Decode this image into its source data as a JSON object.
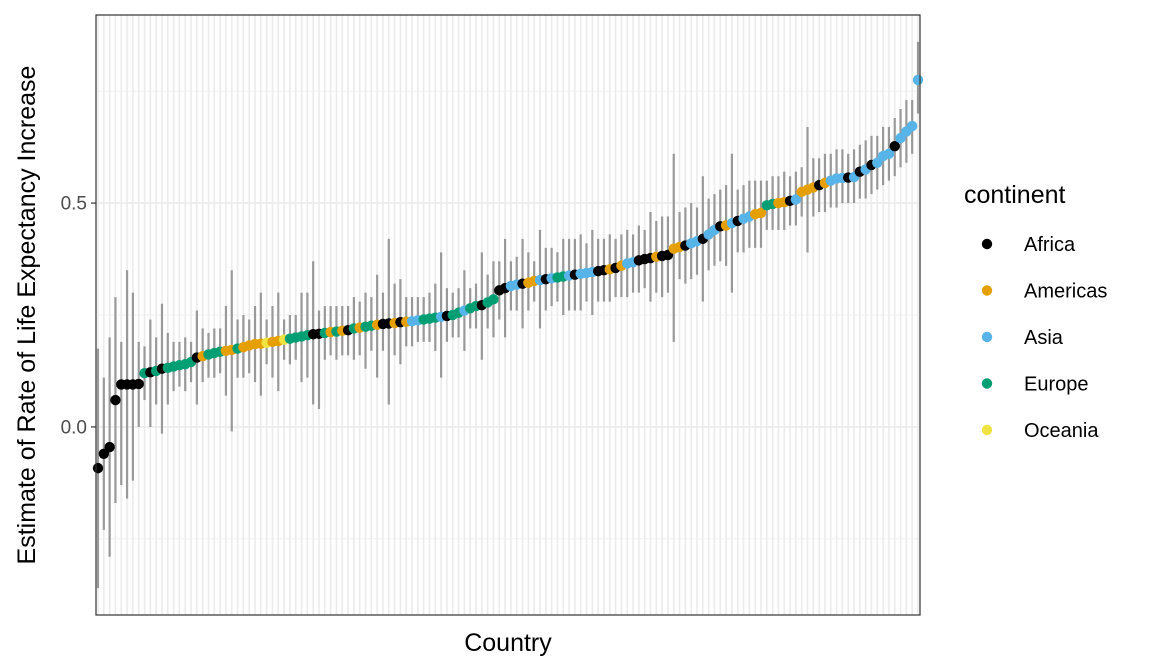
{
  "chart_data": {
    "type": "scatter",
    "xlabel": "Country",
    "ylabel": "Estimate of Rate of Life Expectancy Increase",
    "ylim": [
      -0.42,
      0.92
    ],
    "yticks": [
      0.0,
      0.5
    ],
    "ytick_labels": [
      "0.0",
      "0.5"
    ],
    "x_tick_labels_shown": false,
    "grid": true,
    "legend": {
      "title": "continent",
      "placement": "right",
      "entries": [
        {
          "name": "Africa",
          "color": "#000000"
        },
        {
          "name": "Americas",
          "color": "#E69F00"
        },
        {
          "name": "Asia",
          "color": "#56B4E9"
        },
        {
          "name": "Europe",
          "color": "#009E73"
        },
        {
          "name": "Oceania",
          "color": "#F0E442"
        }
      ]
    },
    "series_note": "142 countries ordered by estimate",
    "points": [
      {
        "rank": 1,
        "continent": "Africa",
        "y": -0.092,
        "lo": -0.36,
        "hi": 0.175
      },
      {
        "rank": 2,
        "continent": "Africa",
        "y": -0.06,
        "lo": -0.23,
        "hi": 0.11
      },
      {
        "rank": 3,
        "continent": "Africa",
        "y": -0.045,
        "lo": -0.29,
        "hi": 0.2
      },
      {
        "rank": 4,
        "continent": "Africa",
        "y": 0.06,
        "lo": -0.17,
        "hi": 0.29
      },
      {
        "rank": 5,
        "continent": "Africa",
        "y": 0.095,
        "lo": -0.13,
        "hi": 0.19
      },
      {
        "rank": 6,
        "continent": "Africa",
        "y": 0.095,
        "lo": -0.16,
        "hi": 0.35
      },
      {
        "rank": 7,
        "continent": "Africa",
        "y": 0.095,
        "lo": -0.12,
        "hi": 0.3
      },
      {
        "rank": 8,
        "continent": "Africa",
        "y": 0.096,
        "lo": 0.0,
        "hi": 0.19
      },
      {
        "rank": 9,
        "continent": "Europe",
        "y": 0.12,
        "lo": 0.06,
        "hi": 0.18
      },
      {
        "rank": 10,
        "continent": "Africa",
        "y": 0.122,
        "lo": 0.0,
        "hi": 0.24
      },
      {
        "rank": 11,
        "continent": "Europe",
        "y": 0.125,
        "lo": 0.05,
        "hi": 0.2
      },
      {
        "rank": 12,
        "continent": "Africa",
        "y": 0.13,
        "lo": -0.015,
        "hi": 0.275
      },
      {
        "rank": 13,
        "continent": "Europe",
        "y": 0.132,
        "lo": 0.05,
        "hi": 0.21
      },
      {
        "rank": 14,
        "continent": "Europe",
        "y": 0.135,
        "lo": 0.08,
        "hi": 0.19
      },
      {
        "rank": 15,
        "continent": "Europe",
        "y": 0.138,
        "lo": 0.09,
        "hi": 0.19
      },
      {
        "rank": 16,
        "continent": "Europe",
        "y": 0.14,
        "lo": 0.08,
        "hi": 0.2
      },
      {
        "rank": 17,
        "continent": "Europe",
        "y": 0.145,
        "lo": 0.1,
        "hi": 0.19
      },
      {
        "rank": 18,
        "continent": "Africa",
        "y": 0.155,
        "lo": 0.05,
        "hi": 0.26
      },
      {
        "rank": 19,
        "continent": "Americas",
        "y": 0.158,
        "lo": 0.1,
        "hi": 0.22
      },
      {
        "rank": 20,
        "continent": "Europe",
        "y": 0.162,
        "lo": 0.11,
        "hi": 0.21
      },
      {
        "rank": 21,
        "continent": "Europe",
        "y": 0.165,
        "lo": 0.11,
        "hi": 0.22
      },
      {
        "rank": 22,
        "continent": "Europe",
        "y": 0.168,
        "lo": 0.12,
        "hi": 0.22
      },
      {
        "rank": 23,
        "continent": "Americas",
        "y": 0.17,
        "lo": 0.07,
        "hi": 0.27
      },
      {
        "rank": 24,
        "continent": "Americas",
        "y": 0.172,
        "lo": -0.01,
        "hi": 0.35
      },
      {
        "rank": 25,
        "continent": "Europe",
        "y": 0.175,
        "lo": 0.11,
        "hi": 0.24
      },
      {
        "rank": 26,
        "continent": "Americas",
        "y": 0.178,
        "lo": 0.11,
        "hi": 0.25
      },
      {
        "rank": 27,
        "continent": "Americas",
        "y": 0.182,
        "lo": 0.12,
        "hi": 0.24
      },
      {
        "rank": 28,
        "continent": "Americas",
        "y": 0.185,
        "lo": 0.1,
        "hi": 0.27
      },
      {
        "rank": 29,
        "continent": "Americas",
        "y": 0.186,
        "lo": 0.07,
        "hi": 0.3
      },
      {
        "rank": 30,
        "continent": "Oceania",
        "y": 0.188,
        "lo": 0.14,
        "hi": 0.24
      },
      {
        "rank": 31,
        "continent": "Americas",
        "y": 0.19,
        "lo": 0.11,
        "hi": 0.27
      },
      {
        "rank": 32,
        "continent": "Americas",
        "y": 0.192,
        "lo": 0.08,
        "hi": 0.3
      },
      {
        "rank": 33,
        "continent": "Oceania",
        "y": 0.195,
        "lo": 0.15,
        "hi": 0.24
      },
      {
        "rank": 34,
        "continent": "Europe",
        "y": 0.197,
        "lo": 0.14,
        "hi": 0.25
      },
      {
        "rank": 35,
        "continent": "Europe",
        "y": 0.2,
        "lo": 0.15,
        "hi": 0.25
      },
      {
        "rank": 36,
        "continent": "Europe",
        "y": 0.202,
        "lo": 0.1,
        "hi": 0.3
      },
      {
        "rank": 37,
        "continent": "Europe",
        "y": 0.205,
        "lo": 0.11,
        "hi": 0.3
      },
      {
        "rank": 38,
        "continent": "Africa",
        "y": 0.207,
        "lo": 0.05,
        "hi": 0.37
      },
      {
        "rank": 39,
        "continent": "Africa",
        "y": 0.208,
        "lo": 0.04,
        "hi": 0.26
      },
      {
        "rank": 40,
        "continent": "Europe",
        "y": 0.21,
        "lo": 0.15,
        "hi": 0.27
      },
      {
        "rank": 41,
        "continent": "Americas",
        "y": 0.212,
        "lo": 0.16,
        "hi": 0.27
      },
      {
        "rank": 42,
        "continent": "Europe",
        "y": 0.213,
        "lo": 0.15,
        "hi": 0.27
      },
      {
        "rank": 43,
        "continent": "Americas",
        "y": 0.215,
        "lo": 0.16,
        "hi": 0.27
      },
      {
        "rank": 44,
        "continent": "Africa",
        "y": 0.216,
        "lo": 0.16,
        "hi": 0.27
      },
      {
        "rank": 45,
        "continent": "Europe",
        "y": 0.22,
        "lo": 0.15,
        "hi": 0.29
      },
      {
        "rank": 46,
        "continent": "Americas",
        "y": 0.222,
        "lo": 0.16,
        "hi": 0.28
      },
      {
        "rank": 47,
        "continent": "Europe",
        "y": 0.224,
        "lo": 0.13,
        "hi": 0.3
      },
      {
        "rank": 48,
        "continent": "Europe",
        "y": 0.226,
        "lo": 0.17,
        "hi": 0.29
      },
      {
        "rank": 49,
        "continent": "Americas",
        "y": 0.228,
        "lo": 0.11,
        "hi": 0.34
      },
      {
        "rank": 50,
        "continent": "Africa",
        "y": 0.23,
        "lo": 0.17,
        "hi": 0.3
      },
      {
        "rank": 51,
        "continent": "Africa",
        "y": 0.231,
        "lo": 0.05,
        "hi": 0.42
      },
      {
        "rank": 52,
        "continent": "Americas",
        "y": 0.232,
        "lo": 0.16,
        "hi": 0.32
      },
      {
        "rank": 53,
        "continent": "Africa",
        "y": 0.234,
        "lo": 0.14,
        "hi": 0.33
      },
      {
        "rank": 54,
        "continent": "Americas",
        "y": 0.235,
        "lo": 0.18,
        "hi": 0.29
      },
      {
        "rank": 55,
        "continent": "Asia",
        "y": 0.236,
        "lo": 0.18,
        "hi": 0.29
      },
      {
        "rank": 56,
        "continent": "Asia",
        "y": 0.238,
        "lo": 0.19,
        "hi": 0.29
      },
      {
        "rank": 57,
        "continent": "Europe",
        "y": 0.24,
        "lo": 0.19,
        "hi": 0.29
      },
      {
        "rank": 58,
        "continent": "Europe",
        "y": 0.242,
        "lo": 0.19,
        "hi": 0.3
      },
      {
        "rank": 59,
        "continent": "Europe",
        "y": 0.244,
        "lo": 0.17,
        "hi": 0.32
      },
      {
        "rank": 60,
        "continent": "Asia",
        "y": 0.246,
        "lo": 0.11,
        "hi": 0.39
      },
      {
        "rank": 61,
        "continent": "Africa",
        "y": 0.248,
        "lo": 0.19,
        "hi": 0.31
      },
      {
        "rank": 62,
        "continent": "Europe",
        "y": 0.25,
        "lo": 0.2,
        "hi": 0.3
      },
      {
        "rank": 63,
        "continent": "Europe",
        "y": 0.255,
        "lo": 0.2,
        "hi": 0.31
      },
      {
        "rank": 64,
        "continent": "Asia",
        "y": 0.26,
        "lo": 0.17,
        "hi": 0.35
      },
      {
        "rank": 65,
        "continent": "Europe",
        "y": 0.265,
        "lo": 0.22,
        "hi": 0.31
      },
      {
        "rank": 66,
        "continent": "Europe",
        "y": 0.27,
        "lo": 0.22,
        "hi": 0.32
      },
      {
        "rank": 67,
        "continent": "Africa",
        "y": 0.272,
        "lo": 0.15,
        "hi": 0.39
      },
      {
        "rank": 68,
        "continent": "Europe",
        "y": 0.278,
        "lo": 0.22,
        "hi": 0.34
      },
      {
        "rank": 69,
        "continent": "Europe",
        "y": 0.285,
        "lo": 0.2,
        "hi": 0.37
      },
      {
        "rank": 70,
        "continent": "Africa",
        "y": 0.305,
        "lo": 0.24,
        "hi": 0.37
      },
      {
        "rank": 71,
        "continent": "Africa",
        "y": 0.31,
        "lo": 0.2,
        "hi": 0.42
      },
      {
        "rank": 72,
        "continent": "Asia",
        "y": 0.315,
        "lo": 0.26,
        "hi": 0.37
      },
      {
        "rank": 73,
        "continent": "Asia",
        "y": 0.318,
        "lo": 0.26,
        "hi": 0.38
      },
      {
        "rank": 74,
        "continent": "Africa",
        "y": 0.32,
        "lo": 0.22,
        "hi": 0.42
      },
      {
        "rank": 75,
        "continent": "Americas",
        "y": 0.322,
        "lo": 0.26,
        "hi": 0.39
      },
      {
        "rank": 76,
        "continent": "Americas",
        "y": 0.326,
        "lo": 0.28,
        "hi": 0.37
      },
      {
        "rank": 77,
        "continent": "Asia",
        "y": 0.328,
        "lo": 0.22,
        "hi": 0.44
      },
      {
        "rank": 78,
        "continent": "Africa",
        "y": 0.33,
        "lo": 0.26,
        "hi": 0.4
      },
      {
        "rank": 79,
        "continent": "Asia",
        "y": 0.332,
        "lo": 0.27,
        "hi": 0.4
      },
      {
        "rank": 80,
        "continent": "Europe",
        "y": 0.334,
        "lo": 0.28,
        "hi": 0.39
      },
      {
        "rank": 81,
        "continent": "Europe",
        "y": 0.336,
        "lo": 0.25,
        "hi": 0.42
      },
      {
        "rank": 82,
        "continent": "Asia",
        "y": 0.338,
        "lo": 0.26,
        "hi": 0.42
      },
      {
        "rank": 83,
        "continent": "Africa",
        "y": 0.34,
        "lo": 0.26,
        "hi": 0.42
      },
      {
        "rank": 84,
        "continent": "Asia",
        "y": 0.342,
        "lo": 0.26,
        "hi": 0.43
      },
      {
        "rank": 85,
        "continent": "Asia",
        "y": 0.344,
        "lo": 0.28,
        "hi": 0.41
      },
      {
        "rank": 86,
        "continent": "Asia",
        "y": 0.346,
        "lo": 0.25,
        "hi": 0.44
      },
      {
        "rank": 87,
        "continent": "Africa",
        "y": 0.348,
        "lo": 0.28,
        "hi": 0.42
      },
      {
        "rank": 88,
        "continent": "Africa",
        "y": 0.35,
        "lo": 0.28,
        "hi": 0.42
      },
      {
        "rank": 89,
        "continent": "Americas",
        "y": 0.352,
        "lo": 0.28,
        "hi": 0.43
      },
      {
        "rank": 90,
        "continent": "Africa",
        "y": 0.355,
        "lo": 0.29,
        "hi": 0.42
      },
      {
        "rank": 91,
        "continent": "Americas",
        "y": 0.36,
        "lo": 0.29,
        "hi": 0.43
      },
      {
        "rank": 92,
        "continent": "Asia",
        "y": 0.365,
        "lo": 0.29,
        "hi": 0.44
      },
      {
        "rank": 93,
        "continent": "Asia",
        "y": 0.368,
        "lo": 0.3,
        "hi": 0.43
      },
      {
        "rank": 94,
        "continent": "Africa",
        "y": 0.372,
        "lo": 0.3,
        "hi": 0.45
      },
      {
        "rank": 95,
        "continent": "Africa",
        "y": 0.375,
        "lo": 0.31,
        "hi": 0.44
      },
      {
        "rank": 96,
        "continent": "Africa",
        "y": 0.377,
        "lo": 0.28,
        "hi": 0.48
      },
      {
        "rank": 97,
        "continent": "Americas",
        "y": 0.38,
        "lo": 0.3,
        "hi": 0.46
      },
      {
        "rank": 98,
        "continent": "Africa",
        "y": 0.382,
        "lo": 0.29,
        "hi": 0.47
      },
      {
        "rank": 99,
        "continent": "Africa",
        "y": 0.384,
        "lo": 0.3,
        "hi": 0.47
      },
      {
        "rank": 100,
        "continent": "Americas",
        "y": 0.398,
        "lo": 0.19,
        "hi": 0.61
      },
      {
        "rank": 101,
        "continent": "Americas",
        "y": 0.402,
        "lo": 0.33,
        "hi": 0.48
      },
      {
        "rank": 102,
        "continent": "Africa",
        "y": 0.405,
        "lo": 0.32,
        "hi": 0.49
      },
      {
        "rank": 103,
        "continent": "Asia",
        "y": 0.41,
        "lo": 0.33,
        "hi": 0.5
      },
      {
        "rank": 104,
        "continent": "Asia",
        "y": 0.415,
        "lo": 0.34,
        "hi": 0.49
      },
      {
        "rank": 105,
        "continent": "Africa",
        "y": 0.42,
        "lo": 0.28,
        "hi": 0.56
      },
      {
        "rank": 106,
        "continent": "Asia",
        "y": 0.43,
        "lo": 0.35,
        "hi": 0.51
      },
      {
        "rank": 107,
        "continent": "Asia",
        "y": 0.44,
        "lo": 0.36,
        "hi": 0.52
      },
      {
        "rank": 108,
        "continent": "Africa",
        "y": 0.448,
        "lo": 0.37,
        "hi": 0.53
      },
      {
        "rank": 109,
        "continent": "Americas",
        "y": 0.45,
        "lo": 0.36,
        "hi": 0.54
      },
      {
        "rank": 110,
        "continent": "Asia",
        "y": 0.455,
        "lo": 0.3,
        "hi": 0.61
      },
      {
        "rank": 111,
        "continent": "Africa",
        "y": 0.46,
        "lo": 0.39,
        "hi": 0.53
      },
      {
        "rank": 112,
        "continent": "Asia",
        "y": 0.465,
        "lo": 0.39,
        "hi": 0.54
      },
      {
        "rank": 113,
        "continent": "Asia",
        "y": 0.47,
        "lo": 0.4,
        "hi": 0.55
      },
      {
        "rank": 114,
        "continent": "Americas",
        "y": 0.475,
        "lo": 0.4,
        "hi": 0.55
      },
      {
        "rank": 115,
        "continent": "Americas",
        "y": 0.478,
        "lo": 0.4,
        "hi": 0.55
      },
      {
        "rank": 116,
        "continent": "Europe",
        "y": 0.495,
        "lo": 0.44,
        "hi": 0.55
      },
      {
        "rank": 117,
        "continent": "Europe",
        "y": 0.498,
        "lo": 0.44,
        "hi": 0.56
      },
      {
        "rank": 118,
        "continent": "Americas",
        "y": 0.5,
        "lo": 0.44,
        "hi": 0.56
      },
      {
        "rank": 119,
        "continent": "Americas",
        "y": 0.502,
        "lo": 0.44,
        "hi": 0.57
      },
      {
        "rank": 120,
        "continent": "Africa",
        "y": 0.505,
        "lo": 0.45,
        "hi": 0.56
      },
      {
        "rank": 121,
        "continent": "Asia",
        "y": 0.508,
        "lo": 0.45,
        "hi": 0.57
      },
      {
        "rank": 122,
        "continent": "Americas",
        "y": 0.525,
        "lo": 0.47,
        "hi": 0.58
      },
      {
        "rank": 123,
        "continent": "Americas",
        "y": 0.53,
        "lo": 0.39,
        "hi": 0.67
      },
      {
        "rank": 124,
        "continent": "Americas",
        "y": 0.535,
        "lo": 0.47,
        "hi": 0.6
      },
      {
        "rank": 125,
        "continent": "Africa",
        "y": 0.54,
        "lo": 0.48,
        "hi": 0.6
      },
      {
        "rank": 126,
        "continent": "Americas",
        "y": 0.545,
        "lo": 0.48,
        "hi": 0.61
      },
      {
        "rank": 127,
        "continent": "Asia",
        "y": 0.55,
        "lo": 0.49,
        "hi": 0.61
      },
      {
        "rank": 128,
        "continent": "Asia",
        "y": 0.555,
        "lo": 0.49,
        "hi": 0.62
      },
      {
        "rank": 129,
        "continent": "Asia",
        "y": 0.556,
        "lo": 0.5,
        "hi": 0.62
      },
      {
        "rank": 130,
        "continent": "Africa",
        "y": 0.557,
        "lo": 0.5,
        "hi": 0.61
      },
      {
        "rank": 131,
        "continent": "Asia",
        "y": 0.558,
        "lo": 0.5,
        "hi": 0.62
      },
      {
        "rank": 132,
        "continent": "Africa",
        "y": 0.57,
        "lo": 0.51,
        "hi": 0.63
      },
      {
        "rank": 133,
        "continent": "Asia",
        "y": 0.575,
        "lo": 0.51,
        "hi": 0.64
      },
      {
        "rank": 134,
        "continent": "Africa",
        "y": 0.585,
        "lo": 0.52,
        "hi": 0.65
      },
      {
        "rank": 135,
        "continent": "Asia",
        "y": 0.59,
        "lo": 0.53,
        "hi": 0.65
      },
      {
        "rank": 136,
        "continent": "Asia",
        "y": 0.605,
        "lo": 0.54,
        "hi": 0.67
      },
      {
        "rank": 137,
        "continent": "Asia",
        "y": 0.61,
        "lo": 0.55,
        "hi": 0.67
      },
      {
        "rank": 138,
        "continent": "Africa",
        "y": 0.627,
        "lo": 0.56,
        "hi": 0.69
      },
      {
        "rank": 139,
        "continent": "Asia",
        "y": 0.645,
        "lo": 0.58,
        "hi": 0.71
      },
      {
        "rank": 140,
        "continent": "Asia",
        "y": 0.66,
        "lo": 0.59,
        "hi": 0.73
      },
      {
        "rank": 141,
        "continent": "Asia",
        "y": 0.672,
        "lo": 0.61,
        "hi": 0.73
      },
      {
        "rank": 142,
        "continent": "Asia",
        "y": 0.775,
        "lo": 0.7,
        "hi": 0.86
      }
    ]
  }
}
